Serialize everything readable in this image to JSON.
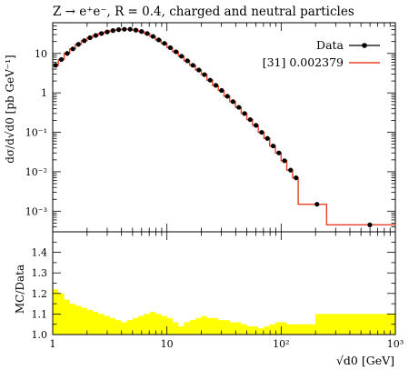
{
  "chart_data": [
    {
      "type": "line",
      "title": "Z → e⁺e⁻, R = 0.4, charged and neutral particles",
      "ylabel": "dσ/d√d0 [pb GeV⁻¹]",
      "xscale": "log",
      "yscale": "log",
      "xlim": [
        1,
        1000
      ],
      "ylim": [
        0.0003,
        60
      ],
      "x_ticks": [
        "1",
        "10",
        "10²",
        "10³"
      ],
      "y_ticks": [
        "10",
        "1",
        "10⁻¹",
        "10⁻²",
        "10⁻³"
      ],
      "legend_placement": "top-right",
      "series": [
        {
          "name": "Data",
          "style": "points-with-errors",
          "color": "#000000",
          "x": [
            1.06,
            1.19,
            1.34,
            1.5,
            1.68,
            1.89,
            2.12,
            2.38,
            2.67,
            3.0,
            3.37,
            3.78,
            4.24,
            4.76,
            5.34,
            5.99,
            6.72,
            7.55,
            8.47,
            9.51,
            10.7,
            12.0,
            13.4,
            15.1,
            16.9,
            19.0,
            21.3,
            23.9,
            26.8,
            30.1,
            33.8,
            37.9,
            42.6,
            47.8,
            53.6,
            60.2,
            67.5,
            75.8,
            85.1,
            95.5,
            107,
            121,
            135,
            206,
            598
          ],
          "y": [
            5,
            7,
            10,
            13,
            17,
            21,
            25,
            28.5,
            32,
            35,
            38,
            40,
            41,
            41,
            39,
            36,
            32,
            27,
            22,
            18,
            14,
            11,
            8.5,
            6.5,
            5,
            3.8,
            2.9,
            2.1,
            1.55,
            1.15,
            0.82,
            0.6,
            0.43,
            0.3,
            0.21,
            0.15,
            0.1,
            0.07,
            0.045,
            0.03,
            0.019,
            0.011,
            0.007,
            0.0015,
            0.00045
          ]
        },
        {
          "name": "[31] 0.002379",
          "style": "step",
          "color": "#e8402a",
          "edges": [
            1,
            1.12,
            1.26,
            1.41,
            1.58,
            1.78,
            2,
            2.24,
            2.51,
            2.82,
            3.16,
            3.55,
            3.98,
            4.47,
            5.01,
            5.62,
            6.31,
            7.08,
            7.94,
            8.91,
            10,
            11.2,
            12.6,
            14.1,
            15.8,
            17.8,
            20,
            22.4,
            25.1,
            28.2,
            31.6,
            35.5,
            39.8,
            44.7,
            50.1,
            56.2,
            63.1,
            70.8,
            79.4,
            89.1,
            100,
            112,
            126,
            141,
            200,
            250,
            1000
          ],
          "values": [
            5,
            7,
            10,
            13,
            17,
            21,
            25,
            28.5,
            32,
            35,
            38,
            40,
            41,
            41,
            39,
            36,
            32,
            27,
            22,
            18,
            14,
            11,
            8.5,
            6.5,
            5,
            3.8,
            2.9,
            2.1,
            1.55,
            1.15,
            0.82,
            0.6,
            0.43,
            0.3,
            0.21,
            0.15,
            0.1,
            0.07,
            0.045,
            0.03,
            0.019,
            0.011,
            0.007,
            0.0015,
            0.0015,
            0.00045
          ]
        }
      ]
    },
    {
      "type": "area",
      "ylabel": "MC/Data",
      "xlabel": "√d0 [GeV]",
      "xscale": "log",
      "xlim": [
        1,
        1000
      ],
      "ylim": [
        1.0,
        1.5
      ],
      "x_ticks": [
        "1",
        "10",
        "10²",
        "10³"
      ],
      "y_ticks": [
        "1.0",
        "1.1",
        "1.2",
        "1.3",
        "1.4"
      ],
      "band_color": "#ffff00",
      "reference_line": 1.0,
      "edges": [
        1,
        1.12,
        1.26,
        1.41,
        1.58,
        1.78,
        2,
        2.24,
        2.51,
        2.82,
        3.16,
        3.55,
        3.98,
        4.47,
        5.01,
        5.62,
        6.31,
        7.08,
        7.94,
        8.91,
        10,
        11.2,
        12.6,
        14.1,
        15.8,
        17.8,
        20,
        22.4,
        25.1,
        28.2,
        31.6,
        35.5,
        39.8,
        44.7,
        50.1,
        56.2,
        63.1,
        70.8,
        79.4,
        89.1,
        100,
        112,
        126,
        141,
        200,
        250,
        1000
      ],
      "band_upper": [
        1.22,
        1.2,
        1.17,
        1.15,
        1.14,
        1.13,
        1.12,
        1.11,
        1.1,
        1.09,
        1.08,
        1.07,
        1.06,
        1.07,
        1.08,
        1.09,
        1.1,
        1.11,
        1.1,
        1.09,
        1.08,
        1.06,
        1.04,
        1.06,
        1.07,
        1.08,
        1.09,
        1.08,
        1.08,
        1.07,
        1.07,
        1.06,
        1.06,
        1.05,
        1.04,
        1.04,
        1.03,
        1.04,
        1.05,
        1.06,
        1.06,
        1.05,
        1.05,
        1.05,
        1.1,
        1.1
      ],
      "band_lower": [
        1.0,
        1.0,
        1.0,
        1.0,
        1.0,
        1.0,
        1.0,
        1.0,
        1.0,
        1.0,
        1.0,
        1.0,
        1.0,
        1.0,
        1.0,
        1.0,
        1.0,
        1.0,
        1.0,
        1.0,
        1.0,
        1.0,
        1.0,
        1.0,
        1.0,
        1.0,
        1.0,
        1.0,
        1.0,
        1.0,
        1.0,
        1.0,
        1.0,
        1.0,
        1.0,
        1.0,
        1.0,
        1.0,
        1.0,
        1.0,
        1.0,
        1.0,
        1.0,
        1.0,
        1.0,
        1.0
      ]
    }
  ]
}
